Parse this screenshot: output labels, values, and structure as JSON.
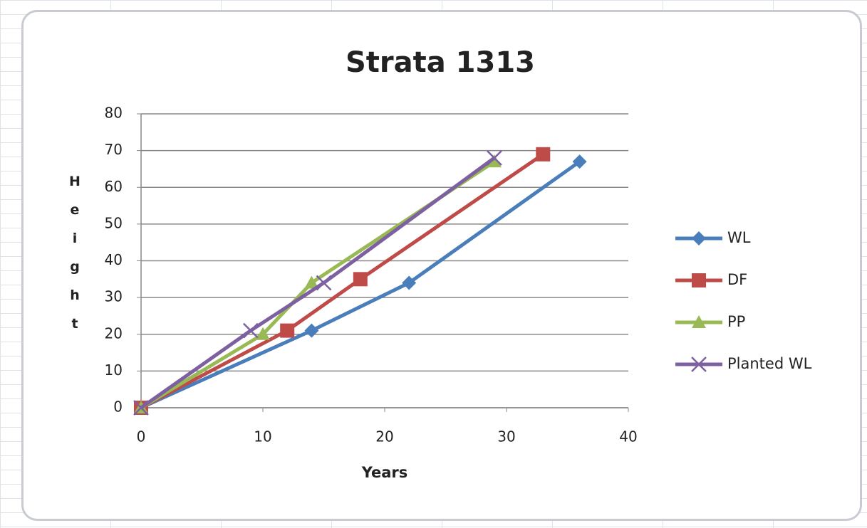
{
  "chart_data": {
    "type": "line",
    "title": "Strata 1313",
    "x_label": "Years",
    "y_label": "Height",
    "xlim": [
      0,
      40
    ],
    "xticks": [
      0,
      10,
      20,
      30,
      40
    ],
    "ylim": [
      0,
      80
    ],
    "yticks": [
      0,
      10,
      20,
      30,
      40,
      50,
      60,
      70,
      80
    ],
    "grid": true,
    "legend": "right",
    "series": [
      {
        "name": "WL",
        "color": "#4a7ebb",
        "marker": "diamond",
        "x": [
          0,
          14,
          22,
          36
        ],
        "values": [
          0,
          21,
          34,
          67
        ]
      },
      {
        "name": "DF",
        "color": "#be4b48",
        "marker": "square",
        "x": [
          0,
          12,
          18,
          33
        ],
        "values": [
          0,
          21,
          35,
          69
        ]
      },
      {
        "name": "PP",
        "color": "#98b954",
        "marker": "triangle",
        "x": [
          0,
          10,
          14,
          29
        ],
        "values": [
          0,
          20,
          34,
          67
        ]
      },
      {
        "name": "Planted WL",
        "color": "#7d60a0",
        "marker": "x",
        "x": [
          0,
          9,
          15,
          29
        ],
        "values": [
          0,
          21,
          34,
          68
        ]
      }
    ]
  }
}
